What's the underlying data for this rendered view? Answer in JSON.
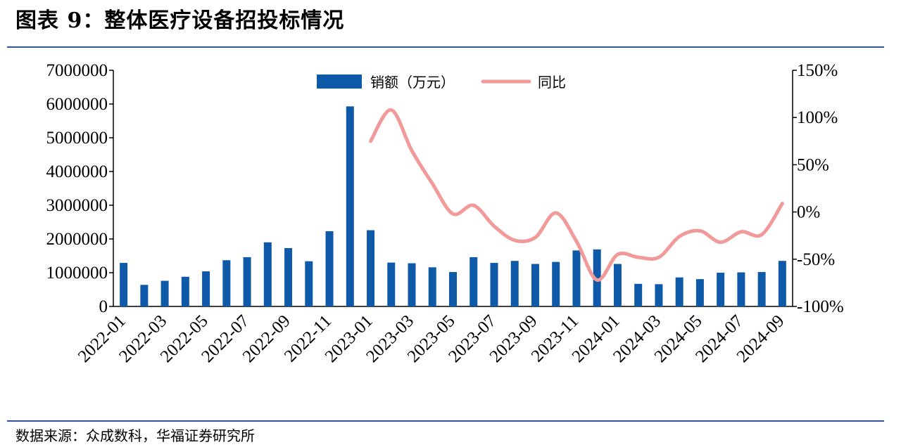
{
  "figure": {
    "title": "图表 9：整体医疗设备招投标情况",
    "source": "数据来源：众成数科，华福证券研究所"
  },
  "colors": {
    "bar": "#0f5aa8",
    "line": "#f29a9a",
    "rule": "#2e5597"
  },
  "chart_data": {
    "type": "bar+line",
    "categories": [
      "2022-01",
      "2022-02",
      "2022-03",
      "2022-04",
      "2022-05",
      "2022-06",
      "2022-07",
      "2022-08",
      "2022-09",
      "2022-10",
      "2022-11",
      "2022-12",
      "2023-01",
      "2023-02",
      "2023-03",
      "2023-04",
      "2023-05",
      "2023-06",
      "2023-07",
      "2023-08",
      "2023-09",
      "2023-10",
      "2023-11",
      "2023-12",
      "2024-01",
      "2024-02",
      "2024-03",
      "2024-04",
      "2024-05",
      "2024-06",
      "2024-07",
      "2024-08",
      "2024-09"
    ],
    "x_tick_labels": [
      "2022-01",
      "2022-03",
      "2022-05",
      "2022-07",
      "2022-09",
      "2022-11",
      "2023-01",
      "2023-03",
      "2023-05",
      "2023-07",
      "2023-09",
      "2023-11",
      "2024-01",
      "2024-03",
      "2024-05",
      "2024-07",
      "2024-09"
    ],
    "series": [
      {
        "name": "销额（万元）",
        "type": "bar",
        "axis": "left",
        "values": [
          1290000,
          640000,
          760000,
          880000,
          1040000,
          1370000,
          1460000,
          1900000,
          1730000,
          1340000,
          2230000,
          5930000,
          2260000,
          1300000,
          1280000,
          1160000,
          1020000,
          1460000,
          1290000,
          1350000,
          1260000,
          1320000,
          1660000,
          1690000,
          1260000,
          670000,
          660000,
          860000,
          810000,
          1000000,
          1010000,
          1020000,
          1350000
        ]
      },
      {
        "name": "同比",
        "type": "line",
        "axis": "right",
        "values": [
          null,
          null,
          null,
          null,
          null,
          null,
          null,
          null,
          null,
          null,
          null,
          null,
          75,
          108,
          65,
          30,
          -2,
          7,
          -15,
          -30,
          -27,
          -1,
          -31,
          -72,
          -45,
          -48,
          -48,
          -26,
          -20,
          -32,
          -21,
          -24,
          9
        ]
      }
    ],
    "y_left": {
      "min": 0,
      "max": 7000000,
      "ticks": [
        "0",
        "1000000",
        "2000000",
        "3000000",
        "4000000",
        "5000000",
        "6000000",
        "7000000"
      ]
    },
    "y_right": {
      "min": -100,
      "max": 150,
      "ticks": [
        "-100%",
        "-50%",
        "0%",
        "50%",
        "100%",
        "150%"
      ]
    },
    "legend": {
      "placement": "top-center"
    },
    "grid": false
  }
}
